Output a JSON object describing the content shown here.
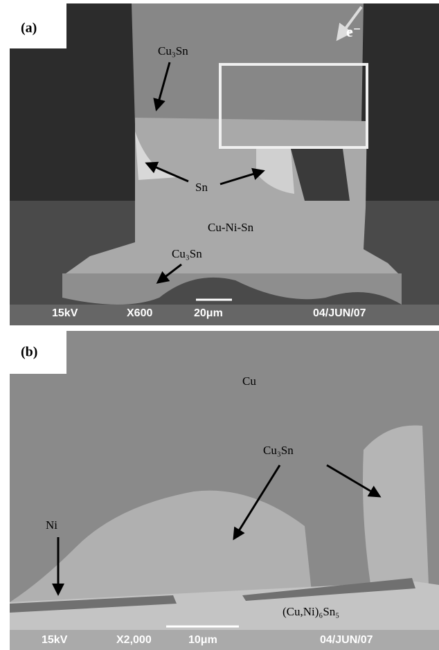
{
  "panels": [
    {
      "label": "(a)",
      "annotations": [
        "Cu₃Sn",
        "e⁻",
        "Sn",
        "Cu-Ni-Sn",
        "Cu₃Sn"
      ],
      "info_bar": {
        "voltage": "15kV",
        "magnification": "X600",
        "scale": "20μm",
        "date": "04/JUN/07"
      }
    },
    {
      "label": "(b)",
      "annotations": [
        "Cu",
        "Cu₃Sn",
        "Ni",
        "(Cu,Ni)₆Sn₅"
      ],
      "info_bar": {
        "voltage": "15kV",
        "magnification": "X2,000",
        "scale": "10μm",
        "date": "04/JUN/07"
      }
    }
  ]
}
